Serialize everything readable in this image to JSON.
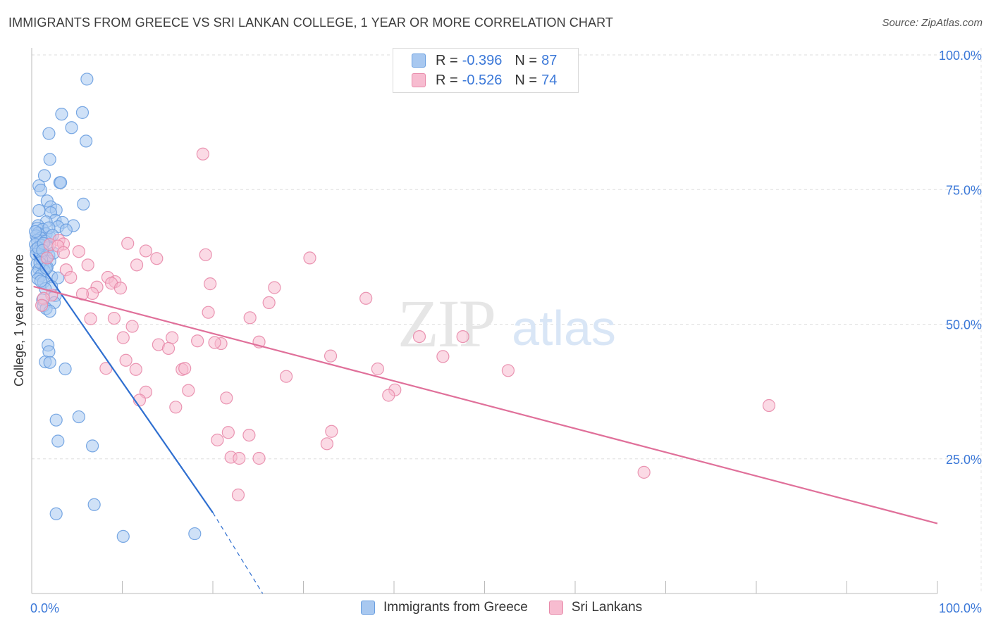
{
  "title": "IMMIGRANTS FROM GREECE VS SRI LANKAN COLLEGE, 1 YEAR OR MORE CORRELATION CHART",
  "source": "Source: ZipAtlas.com",
  "watermark": {
    "zip": "ZIP",
    "atlas": "atlas"
  },
  "legend": {
    "rows": [
      {
        "r_label": "R =",
        "r_value": "-0.396",
        "n_label": "N =",
        "n_value": "87",
        "color": "#a8c8f0",
        "border": "#6a9fe0"
      },
      {
        "r_label": "R =",
        "r_value": "-0.526",
        "n_label": "N =",
        "n_value": "74",
        "color": "#f7bcd0",
        "border": "#e88aaa"
      }
    ]
  },
  "bottom_legend": [
    "Immigrants from Greece",
    "Sri Lankans"
  ],
  "chart_data": {
    "type": "scatter",
    "ylabel": "College, 1 year or more",
    "xlabel": "",
    "xlim": [
      0,
      100
    ],
    "ylim": [
      0,
      100
    ],
    "x_tick_labels": [
      {
        "v": 0,
        "label": "0.0%"
      },
      {
        "v": 100,
        "label": "100.0%"
      }
    ],
    "y_tick_labels": [
      {
        "v": 25,
        "label": "25.0%"
      },
      {
        "v": 50,
        "label": "50.0%"
      },
      {
        "v": 75,
        "label": "75.0%"
      },
      {
        "v": 100,
        "label": "100.0%"
      }
    ],
    "grid": true,
    "series": [
      {
        "name": "Immigrants from Greece",
        "color": "#6a9fe0",
        "fill": "#a8c8f0",
        "trend": {
          "x0": 0.2,
          "y0": 63,
          "x1": 20,
          "y1": 15,
          "dash_to_x": 25.5,
          "dash_to_y": 0
        },
        "points": [
          [
            6.1,
            95.5
          ],
          [
            3.3,
            89
          ],
          [
            5.6,
            89.3
          ],
          [
            4.4,
            86.5
          ],
          [
            1.9,
            85.4
          ],
          [
            6.0,
            84
          ],
          [
            2.0,
            80.6
          ],
          [
            1.4,
            77.6
          ],
          [
            3.1,
            76.3
          ],
          [
            3.2,
            76.3
          ],
          [
            0.8,
            75.7
          ],
          [
            1.0,
            74.9
          ],
          [
            1.7,
            72.9
          ],
          [
            5.7,
            72.3
          ],
          [
            2.1,
            71.8
          ],
          [
            2.7,
            71.2
          ],
          [
            0.8,
            71.1
          ],
          [
            2.1,
            70.7
          ],
          [
            2.6,
            69.3
          ],
          [
            1.6,
            69.0
          ],
          [
            3.4,
            68.9
          ],
          [
            0.7,
            68.3
          ],
          [
            4.6,
            68.3
          ],
          [
            2.9,
            68.1
          ],
          [
            0.6,
            67.8
          ],
          [
            1.2,
            67.6
          ],
          [
            3.8,
            67.5
          ],
          [
            0.7,
            66.9
          ],
          [
            1.6,
            66.8
          ],
          [
            0.5,
            66.4
          ],
          [
            2.0,
            66.2
          ],
          [
            1.0,
            66.0
          ],
          [
            0.6,
            65.6
          ],
          [
            1.5,
            65.4
          ],
          [
            0.4,
            64.8
          ],
          [
            1.1,
            64.6
          ],
          [
            1.8,
            64.2
          ],
          [
            0.5,
            63.9
          ],
          [
            0.8,
            63.6
          ],
          [
            1.9,
            62.8
          ],
          [
            0.9,
            62.6
          ],
          [
            1.5,
            62.2
          ],
          [
            2.0,
            61.7
          ],
          [
            0.6,
            61.2
          ],
          [
            1.2,
            61.0
          ],
          [
            1.7,
            60.6
          ],
          [
            0.8,
            60.2
          ],
          [
            1.4,
            59.9
          ],
          [
            0.6,
            59.5
          ],
          [
            1.0,
            59.0
          ],
          [
            2.2,
            58.8
          ],
          [
            2.9,
            58.6
          ],
          [
            0.7,
            58.4
          ],
          [
            1.3,
            57.8
          ],
          [
            2.2,
            57.0
          ],
          [
            1.5,
            56.6
          ],
          [
            2.6,
            55.3
          ],
          [
            1.2,
            54.5
          ],
          [
            2.5,
            54.0
          ],
          [
            1.3,
            53.4
          ],
          [
            1.6,
            52.9
          ],
          [
            2.0,
            52.4
          ],
          [
            1.8,
            46.1
          ],
          [
            1.9,
            44.9
          ],
          [
            1.5,
            43.0
          ],
          [
            2.0,
            42.9
          ],
          [
            3.7,
            41.7
          ],
          [
            2.7,
            32.2
          ],
          [
            5.2,
            32.8
          ],
          [
            2.9,
            28.3
          ],
          [
            6.7,
            27.4
          ],
          [
            6.9,
            16.5
          ],
          [
            2.7,
            14.8
          ],
          [
            10.1,
            10.6
          ],
          [
            18.0,
            11.1
          ],
          [
            0.5,
            63.0
          ],
          [
            1.1,
            62.0
          ],
          [
            0.9,
            61.4
          ],
          [
            1.6,
            60.4
          ],
          [
            0.7,
            64.2
          ],
          [
            1.3,
            65.0
          ],
          [
            2.4,
            63.2
          ],
          [
            1.0,
            58.0
          ],
          [
            0.4,
            67.2
          ],
          [
            1.9,
            67.9
          ],
          [
            2.3,
            66.5
          ],
          [
            1.2,
            63.7
          ]
        ]
      },
      {
        "name": "Sri Lankans",
        "color": "#e88aaa",
        "fill": "#f7bcd0",
        "trend": {
          "x0": 0.2,
          "y0": 57,
          "x1": 100,
          "y1": 13
        },
        "points": [
          [
            18.9,
            81.6
          ],
          [
            3.0,
            65.6
          ],
          [
            10.6,
            65.0
          ],
          [
            3.5,
            64.9
          ],
          [
            2.0,
            64.8
          ],
          [
            2.9,
            64.5
          ],
          [
            12.6,
            63.6
          ],
          [
            5.2,
            63.5
          ],
          [
            3.5,
            63.3
          ],
          [
            19.2,
            62.9
          ],
          [
            1.7,
            62.3
          ],
          [
            13.8,
            62.2
          ],
          [
            30.7,
            62.3
          ],
          [
            11.6,
            61.0
          ],
          [
            6.2,
            61.0
          ],
          [
            3.8,
            60.1
          ],
          [
            4.3,
            58.7
          ],
          [
            8.4,
            58.7
          ],
          [
            9.2,
            57.9
          ],
          [
            8.8,
            57.6
          ],
          [
            19.7,
            57.5
          ],
          [
            26.8,
            56.8
          ],
          [
            7.2,
            56.9
          ],
          [
            9.8,
            56.7
          ],
          [
            6.7,
            55.7
          ],
          [
            5.6,
            55.6
          ],
          [
            2.2,
            55.4
          ],
          [
            1.3,
            54.8
          ],
          [
            36.9,
            54.8
          ],
          [
            26.2,
            54.0
          ],
          [
            1.1,
            53.5
          ],
          [
            19.5,
            52.2
          ],
          [
            24.1,
            51.2
          ],
          [
            6.5,
            51.0
          ],
          [
            9.1,
            51.1
          ],
          [
            11.1,
            49.6
          ],
          [
            15.5,
            47.5
          ],
          [
            10.1,
            47.5
          ],
          [
            25.1,
            46.7
          ],
          [
            20.9,
            46.4
          ],
          [
            14.0,
            46.2
          ],
          [
            18.3,
            46.9
          ],
          [
            42.8,
            47.7
          ],
          [
            47.6,
            47.7
          ],
          [
            15.1,
            45.5
          ],
          [
            33.0,
            44.1
          ],
          [
            10.4,
            43.3
          ],
          [
            45.4,
            44.0
          ],
          [
            8.2,
            41.8
          ],
          [
            11.5,
            41.6
          ],
          [
            16.6,
            41.6
          ],
          [
            16.9,
            41.8
          ],
          [
            38.2,
            41.7
          ],
          [
            52.6,
            41.4
          ],
          [
            28.1,
            40.3
          ],
          [
            40.1,
            37.8
          ],
          [
            12.6,
            37.4
          ],
          [
            17.3,
            37.7
          ],
          [
            39.4,
            36.8
          ],
          [
            11.9,
            35.9
          ],
          [
            21.5,
            36.3
          ],
          [
            15.9,
            34.6
          ],
          [
            81.4,
            34.9
          ],
          [
            21.7,
            29.9
          ],
          [
            24.0,
            29.4
          ],
          [
            33.1,
            30.1
          ],
          [
            20.5,
            28.5
          ],
          [
            32.6,
            27.8
          ],
          [
            22.0,
            25.3
          ],
          [
            22.9,
            25.1
          ],
          [
            25.1,
            25.1
          ],
          [
            67.6,
            22.5
          ],
          [
            22.8,
            18.3
          ],
          [
            20.2,
            46.6
          ]
        ]
      }
    ]
  }
}
